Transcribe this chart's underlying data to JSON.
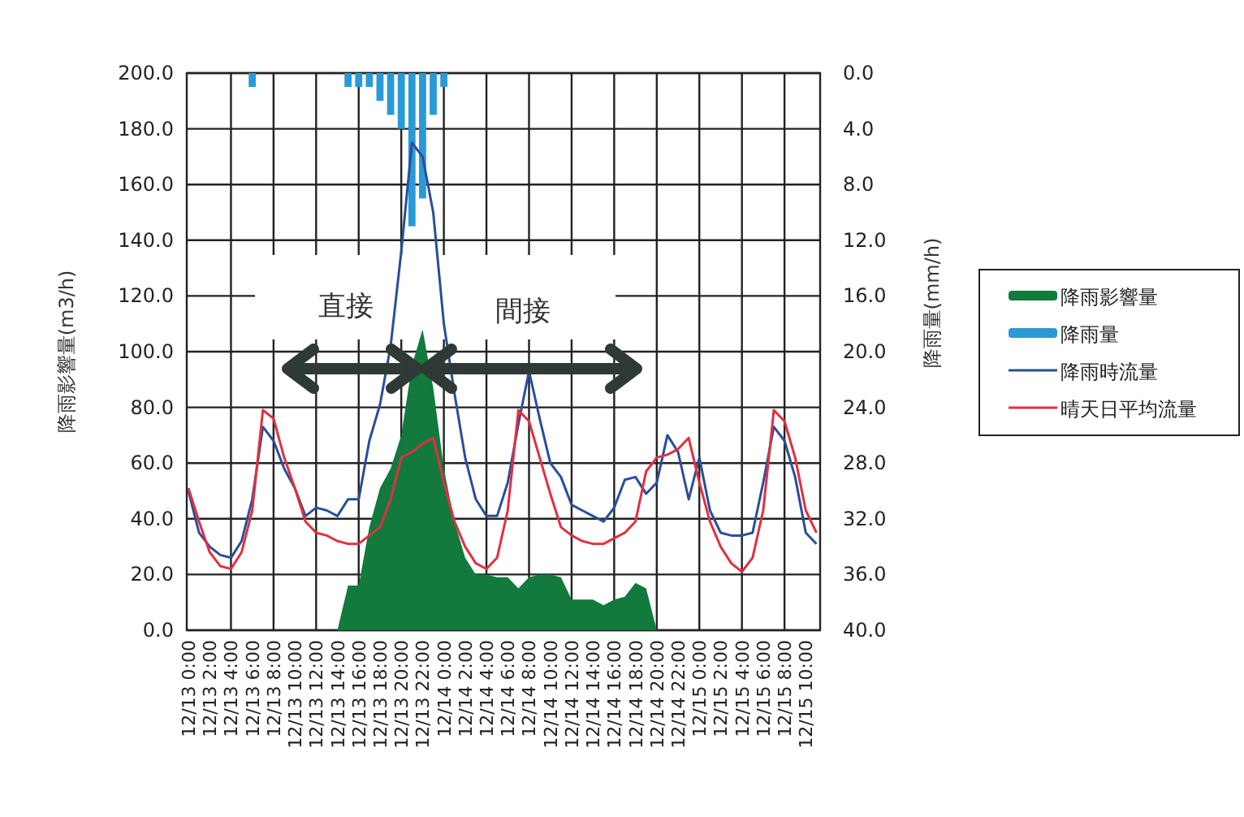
{
  "chart_data": {
    "type": "line",
    "ylabel": "降雨影響量(m3/h)",
    "y2label": "降雨量(mm/h)",
    "categories": [
      "12/13 0:00",
      null,
      "12/13 2:00",
      null,
      "12/13 4:00",
      null,
      "12/13 6:00",
      null,
      "12/13 8:00",
      null,
      "12/13 10:00",
      null,
      "12/13 12:00",
      null,
      "12/13 14:00",
      null,
      "12/13 16:00",
      null,
      "12/13 18:00",
      null,
      "12/13 20:00",
      null,
      "12/13 22:00",
      null,
      "12/14 0:00",
      null,
      "12/14 2:00",
      null,
      "12/14 4:00",
      null,
      "12/14 6:00",
      null,
      "12/14 8:00",
      null,
      "12/14 10:00",
      null,
      "12/14 12:00",
      null,
      "12/14 14:00",
      null,
      "12/14 16:00",
      null,
      "12/14 18:00",
      null,
      "12/14 20:00",
      null,
      "12/14 22:00",
      null,
      "12/15 0:00",
      null,
      "12/15 2:00",
      null,
      "12/15 4:00",
      null,
      "12/15 6:00",
      null,
      "12/15 8:00",
      null,
      "12/15 10:00",
      null
    ],
    "ylim": [
      0,
      200
    ],
    "yticks": [
      {
        "value": 0,
        "label": "0.0"
      },
      {
        "value": 20,
        "label": "20.0"
      },
      {
        "value": 40,
        "label": "40.0"
      },
      {
        "value": 60,
        "label": "60.0"
      },
      {
        "value": 80,
        "label": "80.0"
      },
      {
        "value": 100,
        "label": "100.0"
      },
      {
        "value": 120,
        "label": "120.0"
      },
      {
        "value": 140,
        "label": "140.0"
      },
      {
        "value": 160,
        "label": "160.0"
      },
      {
        "value": 180,
        "label": "180.0"
      },
      {
        "value": 200,
        "label": "200.0"
      }
    ],
    "y2lim": [
      40,
      0
    ],
    "y2ticks": [
      {
        "value": 0,
        "label": "0.0"
      },
      {
        "value": 4,
        "label": "4.0"
      },
      {
        "value": 8,
        "label": "8.0"
      },
      {
        "value": 12,
        "label": "12.0"
      },
      {
        "value": 16,
        "label": "16.0"
      },
      {
        "value": 20,
        "label": "20.0"
      },
      {
        "value": 24,
        "label": "24.0"
      },
      {
        "value": 28,
        "label": "28.0"
      },
      {
        "value": 32,
        "label": "32.0"
      },
      {
        "value": 36,
        "label": "36.0"
      },
      {
        "value": 40,
        "label": "40.0"
      }
    ],
    "grid": true,
    "legend": "right",
    "marker": "none",
    "line_style": "solid",
    "annotations": [
      "直接",
      "間接"
    ],
    "series": [
      {
        "name": "降雨影響量",
        "type": "area",
        "color": "#117a3c",
        "values": [
          null,
          null,
          null,
          null,
          null,
          null,
          null,
          null,
          null,
          null,
          null,
          null,
          null,
          null,
          0,
          16,
          16,
          37,
          51,
          58,
          70,
          95,
          108,
          87,
          58,
          39,
          26,
          20,
          20,
          19,
          19,
          15,
          19,
          20,
          20,
          19,
          11,
          11,
          11,
          9,
          11,
          12,
          17,
          15,
          0,
          null,
          null,
          null,
          null,
          null,
          null,
          null,
          null,
          null,
          null,
          null,
          null,
          null,
          null,
          null
        ]
      },
      {
        "name": "降雨量",
        "type": "bar",
        "axis": "y2",
        "color": "#2a9ad6",
        "values": [
          null,
          null,
          null,
          null,
          null,
          null,
          1,
          null,
          null,
          null,
          null,
          null,
          null,
          null,
          null,
          1,
          1,
          1,
          2,
          3,
          4,
          11,
          9,
          3,
          1,
          null,
          null,
          null,
          null,
          null,
          null,
          null,
          null,
          null,
          null,
          null,
          null,
          null,
          null,
          null,
          null,
          null,
          null,
          null,
          null,
          null,
          null,
          null,
          null,
          null,
          null,
          null,
          null,
          null,
          null,
          null,
          null,
          null,
          null,
          null
        ]
      },
      {
        "name": "降雨時流量",
        "color": "#2a4e9a",
        "values": [
          50,
          35,
          30,
          27,
          26,
          32,
          47,
          73,
          68,
          58,
          51,
          41,
          44,
          43,
          41,
          47,
          47,
          68,
          81,
          102,
          136,
          175,
          170,
          150,
          110,
          85,
          62,
          47,
          41,
          41,
          53,
          74,
          93,
          76,
          60,
          55,
          45,
          43,
          41,
          39,
          44,
          54,
          55,
          49,
          53,
          70,
          64,
          47,
          62,
          43,
          35,
          34,
          34,
          35,
          53,
          73,
          68,
          55,
          35,
          31
        ]
      },
      {
        "name": "晴天日平均流量",
        "color": "#e03040",
        "values": [
          51,
          39,
          28,
          23,
          22,
          28,
          43,
          79,
          76,
          62,
          51,
          39,
          35,
          34,
          32,
          31,
          31,
          34,
          37,
          47,
          62,
          64,
          67,
          69,
          53,
          39,
          30,
          24,
          22,
          26,
          43,
          79,
          75,
          62,
          49,
          37,
          34,
          32,
          31,
          31,
          33,
          35,
          39,
          57,
          62,
          63,
          65,
          69,
          53,
          39,
          30,
          24,
          21,
          26,
          43,
          79,
          75,
          62,
          43,
          35
        ]
      }
    ]
  }
}
